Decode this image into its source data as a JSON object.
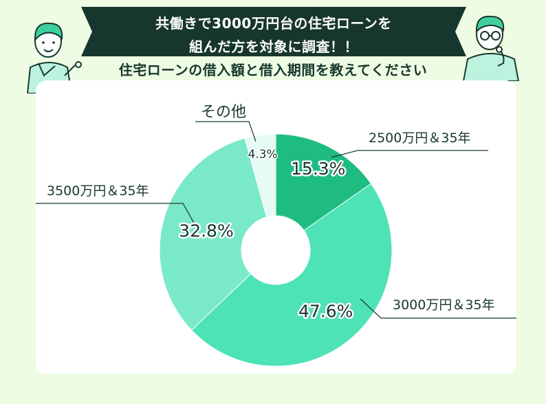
{
  "header": {
    "title_line1": "共働きで3000万円台の住宅ローンを",
    "title_line2": "組んだ方を対象に調査！！",
    "subtitle": "住宅ローンの借入額と借入期間を教えてください"
  },
  "chart_data": {
    "type": "pie",
    "donut": true,
    "unit": "%",
    "slices": [
      {
        "label": "2500万円＆35年",
        "value": 15.3,
        "display": "15.3%",
        "color": "#1fbc82"
      },
      {
        "label": "3000万円＆35年",
        "value": 47.6,
        "display": "47.6%",
        "color": "#4ee2b7"
      },
      {
        "label": "3500万円＆35年",
        "value": 32.8,
        "display": "32.8%",
        "color": "#7ae9c9"
      },
      {
        "label": "その他",
        "value": 4.3,
        "display": "4.3%",
        "color": "#e5fbf4"
      }
    ]
  }
}
